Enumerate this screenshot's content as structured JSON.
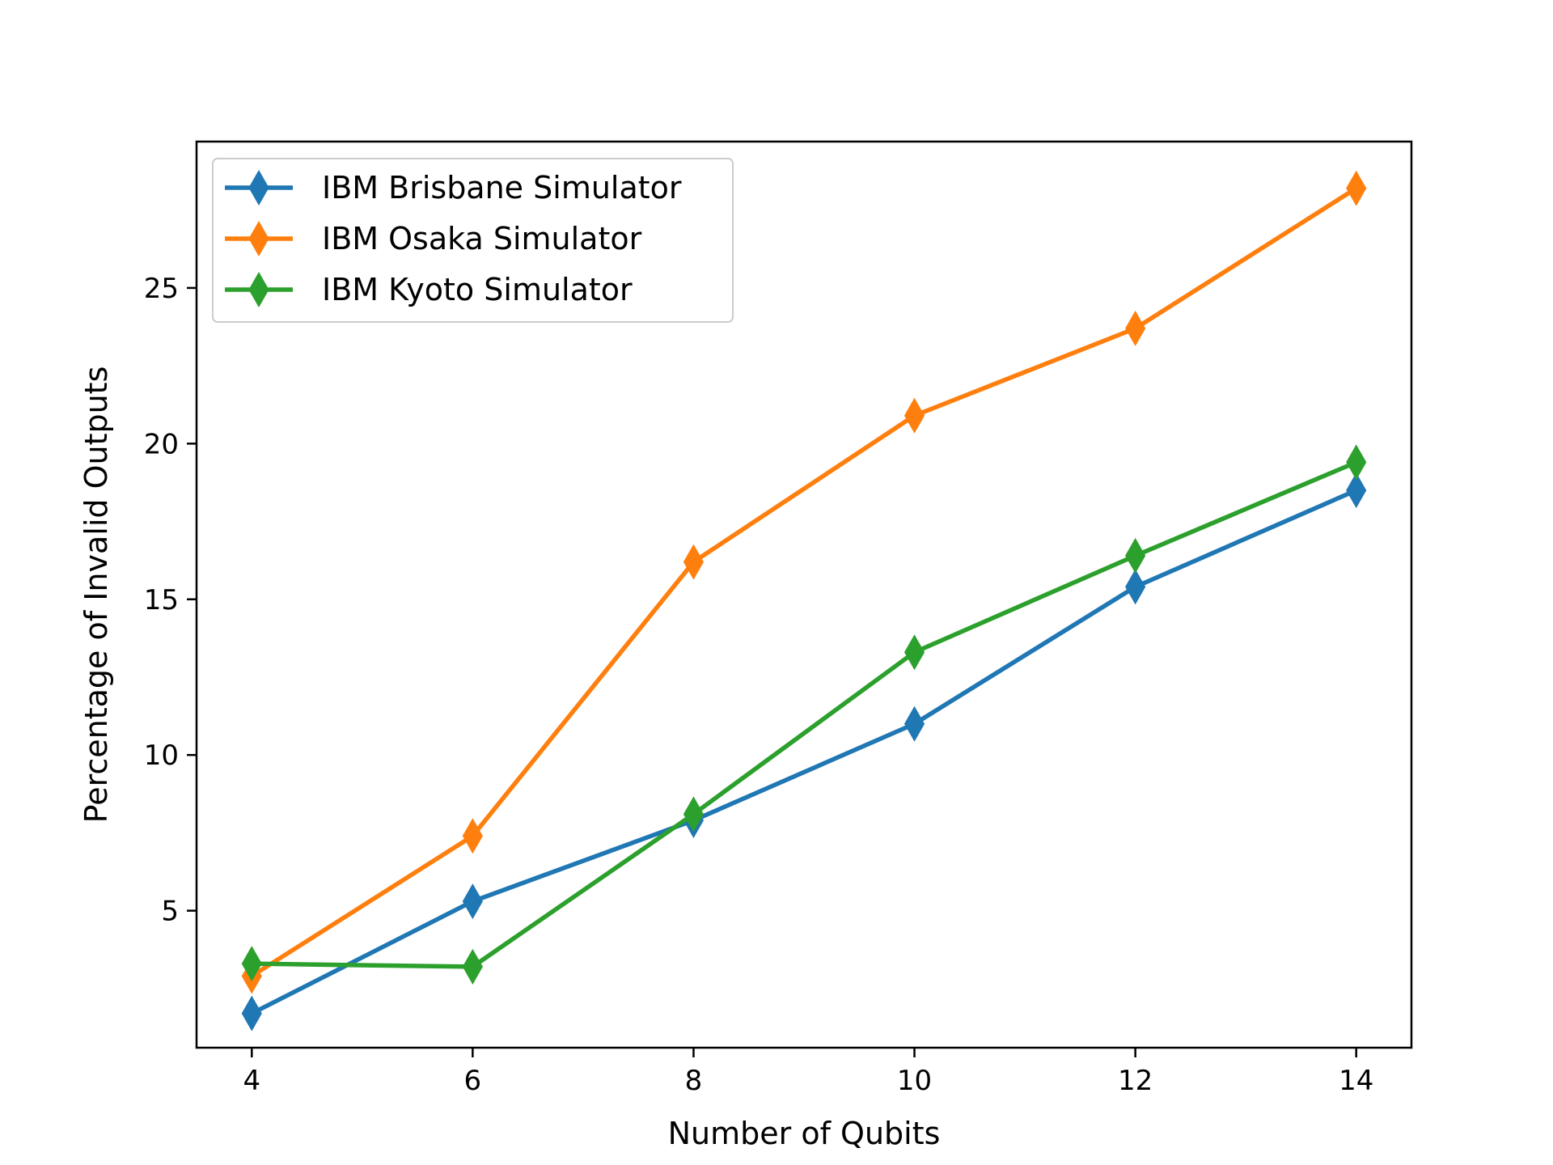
{
  "chart_data": {
    "type": "line",
    "title": "",
    "xlabel": "Number of Qubits",
    "ylabel": "Percentage of Invalid Outputs",
    "x": [
      4,
      6,
      8,
      10,
      12,
      14
    ],
    "xticks": [
      "4",
      "6",
      "8",
      "10",
      "12",
      "14"
    ],
    "yticks": [
      "5",
      "10",
      "15",
      "20",
      "25"
    ],
    "xlim": [
      3.5,
      14.5
    ],
    "ylim": [
      0.6,
      29.7
    ],
    "grid": false,
    "legend_position": "top-left",
    "marker": "thin-diamond",
    "series": [
      {
        "name": "IBM Brisbane Simulator",
        "color": "#1f77b4",
        "values": [
          1.7,
          5.3,
          7.9,
          11.0,
          15.4,
          18.5
        ]
      },
      {
        "name": "IBM Osaka Simulator",
        "color": "#ff7f0e",
        "values": [
          2.9,
          7.4,
          16.2,
          20.9,
          23.7,
          28.2
        ]
      },
      {
        "name": "IBM Kyoto Simulator",
        "color": "#2ca02c",
        "values": [
          3.3,
          3.2,
          8.1,
          13.3,
          16.4,
          19.4
        ]
      }
    ]
  }
}
